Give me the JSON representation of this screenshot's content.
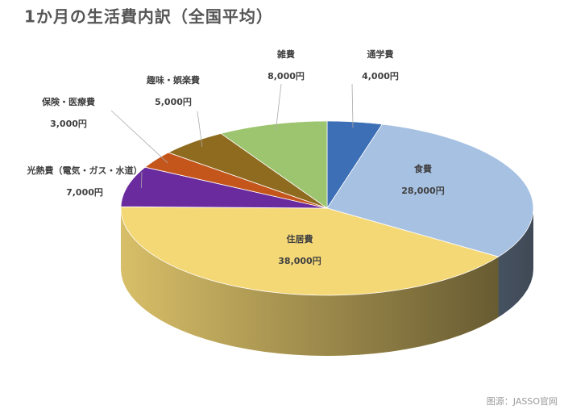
{
  "chart_data": {
    "type": "pie3d",
    "title": "1か月の生活費内訳（全国平均）",
    "categories": [
      "通学費",
      "食費",
      "住居費",
      "光熱費（電気・ガス・水道）",
      "保険・医療費",
      "趣味・娯楽費",
      "雑費"
    ],
    "values": [
      4000,
      28000,
      38000,
      7000,
      3000,
      5000,
      8000
    ],
    "value_labels": [
      "4,000円",
      "28,000円",
      "38,000円",
      "7,000円",
      "3,000円",
      "5,000円",
      "8,000円"
    ],
    "colors": [
      "#3c6fb6",
      "#a7c1e3",
      "#f5d876",
      "#6a2b9e",
      "#c5561b",
      "#8e6b1f",
      "#9dc46f"
    ],
    "source": "图源：JASSO官网"
  }
}
